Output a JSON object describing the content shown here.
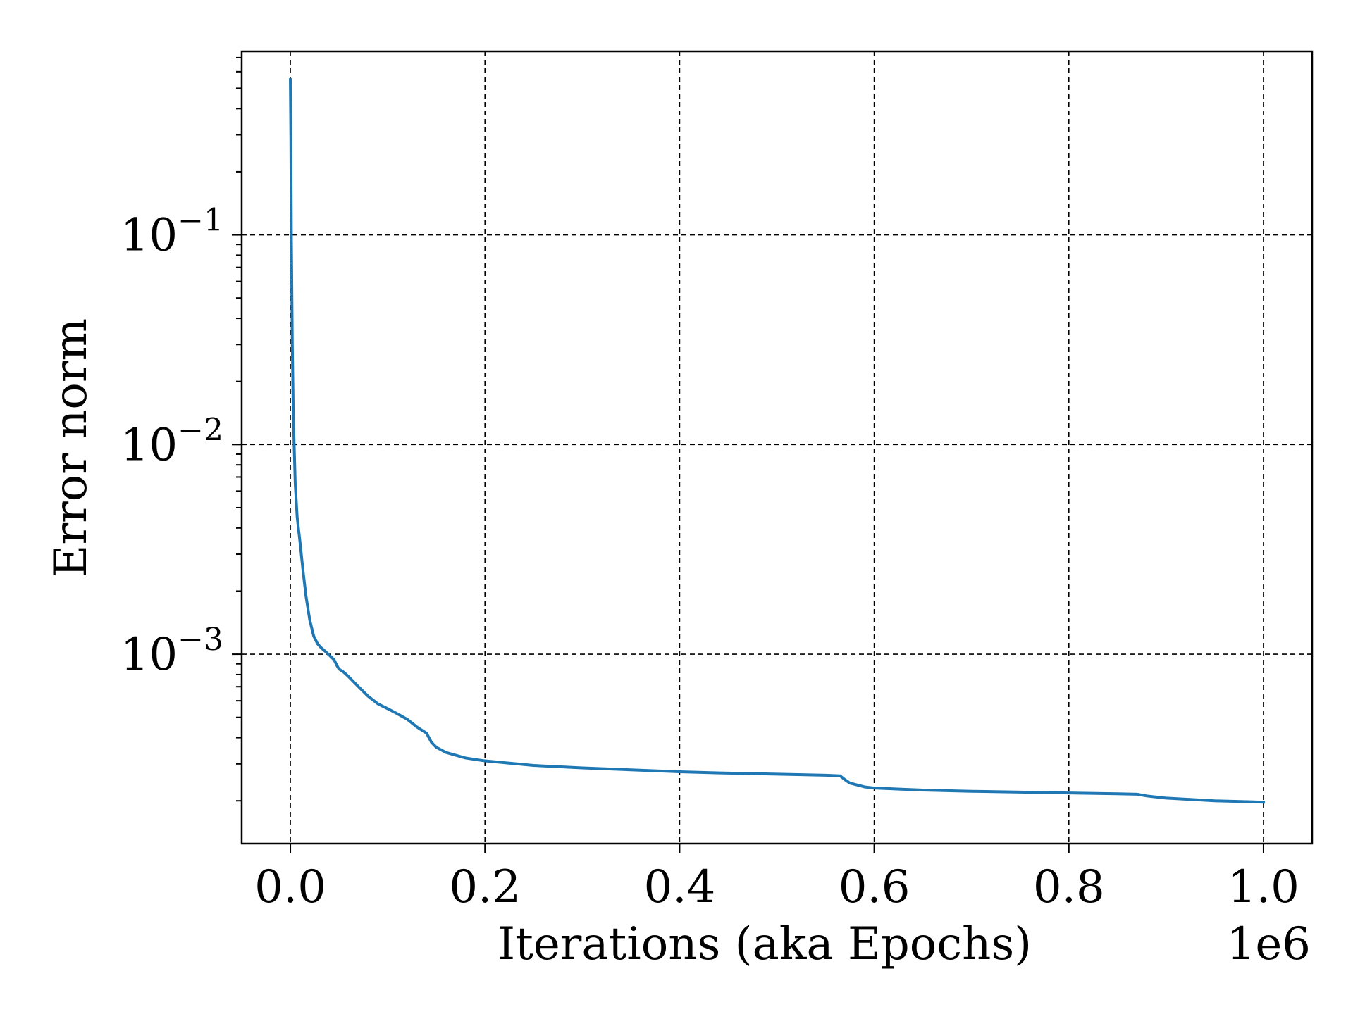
{
  "chart_data": {
    "type": "line",
    "title": "",
    "xlabel": "Iterations (aka Epochs)",
    "ylabel": "Error norm",
    "x_offset_text": "1e6",
    "xlim": [
      -50000,
      1050000
    ],
    "ylim": [
      0.000125,
      0.75
    ],
    "y_scale": "log",
    "grid": true,
    "line_color": "#1f77b4",
    "x_ticks": [
      0,
      200000,
      400000,
      600000,
      800000,
      1000000
    ],
    "x_tick_labels": [
      "0.0",
      "0.2",
      "0.4",
      "0.6",
      "0.8",
      "1.0"
    ],
    "y_ticks": [
      0.1,
      0.01,
      0.001
    ],
    "y_tick_labels": [
      {
        "base": "10",
        "exp": "−1"
      },
      {
        "base": "10",
        "exp": "−2"
      },
      {
        "base": "10",
        "exp": "−3"
      }
    ],
    "series": [
      {
        "x": [
          0,
          500,
          1000,
          2000,
          3000,
          5000,
          7000,
          10000,
          13000,
          16000,
          20000,
          24000,
          28000,
          32000,
          36000,
          40000,
          45000,
          48000,
          50000,
          55000,
          60000,
          70000,
          80000,
          90000,
          100000,
          110000,
          120000,
          130000,
          140000,
          145000,
          150000,
          160000,
          180000,
          200000,
          250000,
          300000,
          350000,
          400000,
          450000,
          500000,
          550000,
          565000,
          570000,
          575000,
          590000,
          600000,
          650000,
          700000,
          750000,
          800000,
          850000,
          870000,
          880000,
          900000,
          950000,
          1000000
        ],
        "y": [
          0.55,
          0.3,
          0.1,
          0.03,
          0.014,
          0.0065,
          0.0045,
          0.0034,
          0.0025,
          0.0019,
          0.00145,
          0.00122,
          0.00112,
          0.00107,
          0.00103,
          0.00099,
          0.00094,
          0.00088,
          0.00085,
          0.00082,
          0.00078,
          0.0007,
          0.00063,
          0.00058,
          0.00055,
          0.00052,
          0.00049,
          0.00045,
          0.00042,
          0.00038,
          0.00036,
          0.00034,
          0.00032,
          0.00031,
          0.000295,
          0.000287,
          0.000281,
          0.000275,
          0.000271,
          0.000268,
          0.000265,
          0.000263,
          0.000252,
          0.000243,
          0.000233,
          0.00023,
          0.000225,
          0.000222,
          0.00022,
          0.000218,
          0.000216,
          0.000215,
          0.000211,
          0.000206,
          0.0002,
          0.000197
        ]
      }
    ]
  }
}
